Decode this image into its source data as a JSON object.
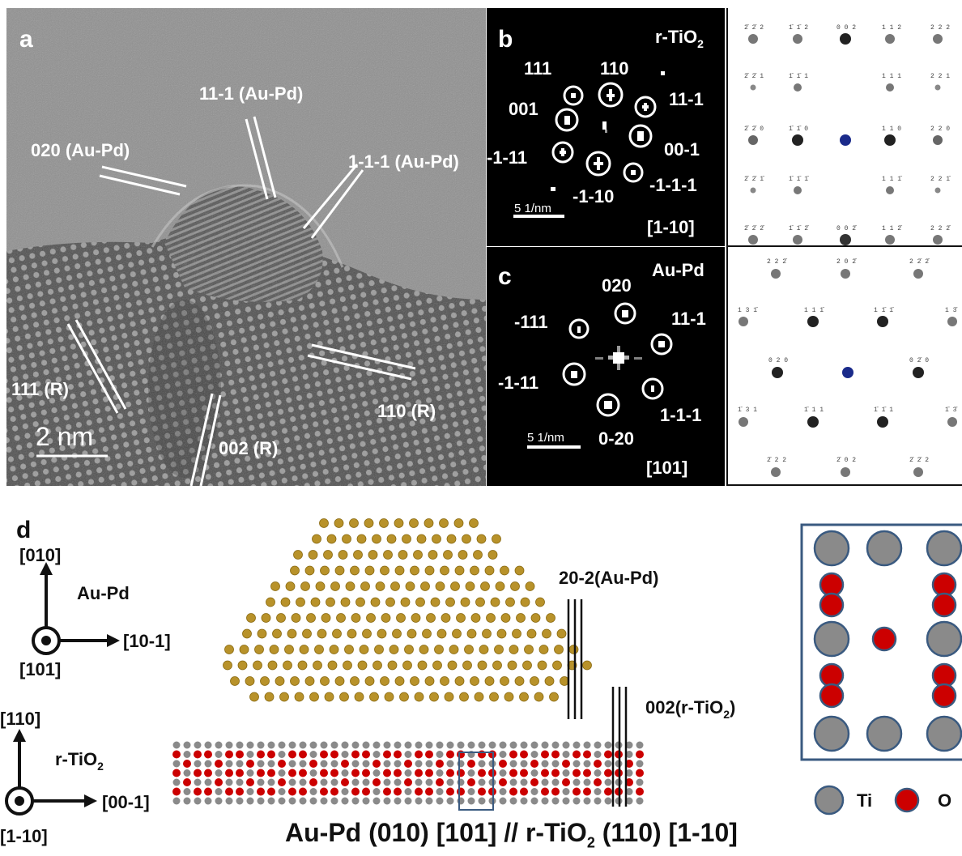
{
  "panel_a": {
    "letter": "a",
    "scale_bar": "2 nm",
    "labels": [
      "11-1 (Au-Pd)",
      "020 (Au-Pd)",
      "1-1-1 (Au-Pd)",
      "111 (R)",
      "110 (R)",
      "002 (R)"
    ]
  },
  "panel_b": {
    "letter": "b",
    "material": "r-TiO",
    "material_sub": "2",
    "zone_axis": "[1-10]",
    "scale": "5 1/nm",
    "spots": [
      "111",
      "110",
      "11-1",
      "001",
      "00-1",
      "-1-11",
      "-1-1-1",
      "-1-10"
    ],
    "sim_labels": [
      [
        "2̄ 2̄ 2",
        "1̄ 1̄ 2",
        "0 0 2",
        "1 1 2",
        "2 2 2"
      ],
      [
        "2̄ 2̄ 1",
        "1̄ 1̄ 1",
        "",
        "1 1 1",
        "2 2 1"
      ],
      [
        "2̄ 2̄ 0",
        "1̄ 1̄ 0",
        "",
        "1 1 0",
        "2 2 0"
      ],
      [
        "2̄ 2̄ 1̄",
        "1̄ 1̄ 1̄",
        "",
        "1 1 1̄",
        "2 2 1̄"
      ],
      [
        "2̄ 2̄ 2̄",
        "1̄ 1̄ 2̄",
        "0 0 2̄",
        "1 1 2̄",
        "2 2 2̄"
      ]
    ]
  },
  "panel_c": {
    "letter": "c",
    "material": "Au-Pd",
    "zone_axis": "[101]",
    "scale": "5 1/nm",
    "spots": [
      "020",
      "-111",
      "11-1",
      "-1-11",
      "1-1-1",
      "0-20"
    ],
    "sim_labels": [
      "2 2 2̄",
      "2 0 2̄",
      "2 2̄ 2̄",
      "1 3 1̄",
      "1 1 1̄",
      "1 1̄ 1̄",
      "1 3̄",
      "0 2 0",
      "0 2̄ 0",
      "1̄ 3 1",
      "1̄ 1 1",
      "1̄ 1̄ 1",
      "1̄ 3̄",
      "2̄ 2 2",
      "2̄ 0 2",
      "2̄ 2̄ 2"
    ]
  },
  "panel_d": {
    "letter": "d",
    "axes_top": {
      "up": "[010]",
      "right": "[10-1]",
      "out": "[101]",
      "material": "Au-Pd"
    },
    "axes_bottom": {
      "up": "[110]",
      "right": "[00-1]",
      "out": "[1-10]",
      "material": "r-TiO",
      "material_sub": "2"
    },
    "label_top": "20-2(Au-Pd)",
    "label_bottom": "002(r-TiO",
    "label_bottom_sub": "2",
    "label_bottom_end": ")",
    "legend": [
      "Ti",
      "O"
    ],
    "caption_part1": "Au-Pd (010) [101] //  r-TiO",
    "caption_sub": "2",
    "caption_part2": " (110) [1-10]"
  },
  "colors": {
    "au_pd": "#b8922a",
    "ti": "#8a8a8a",
    "o": "#cc0000",
    "frame": "#3a5a80"
  }
}
